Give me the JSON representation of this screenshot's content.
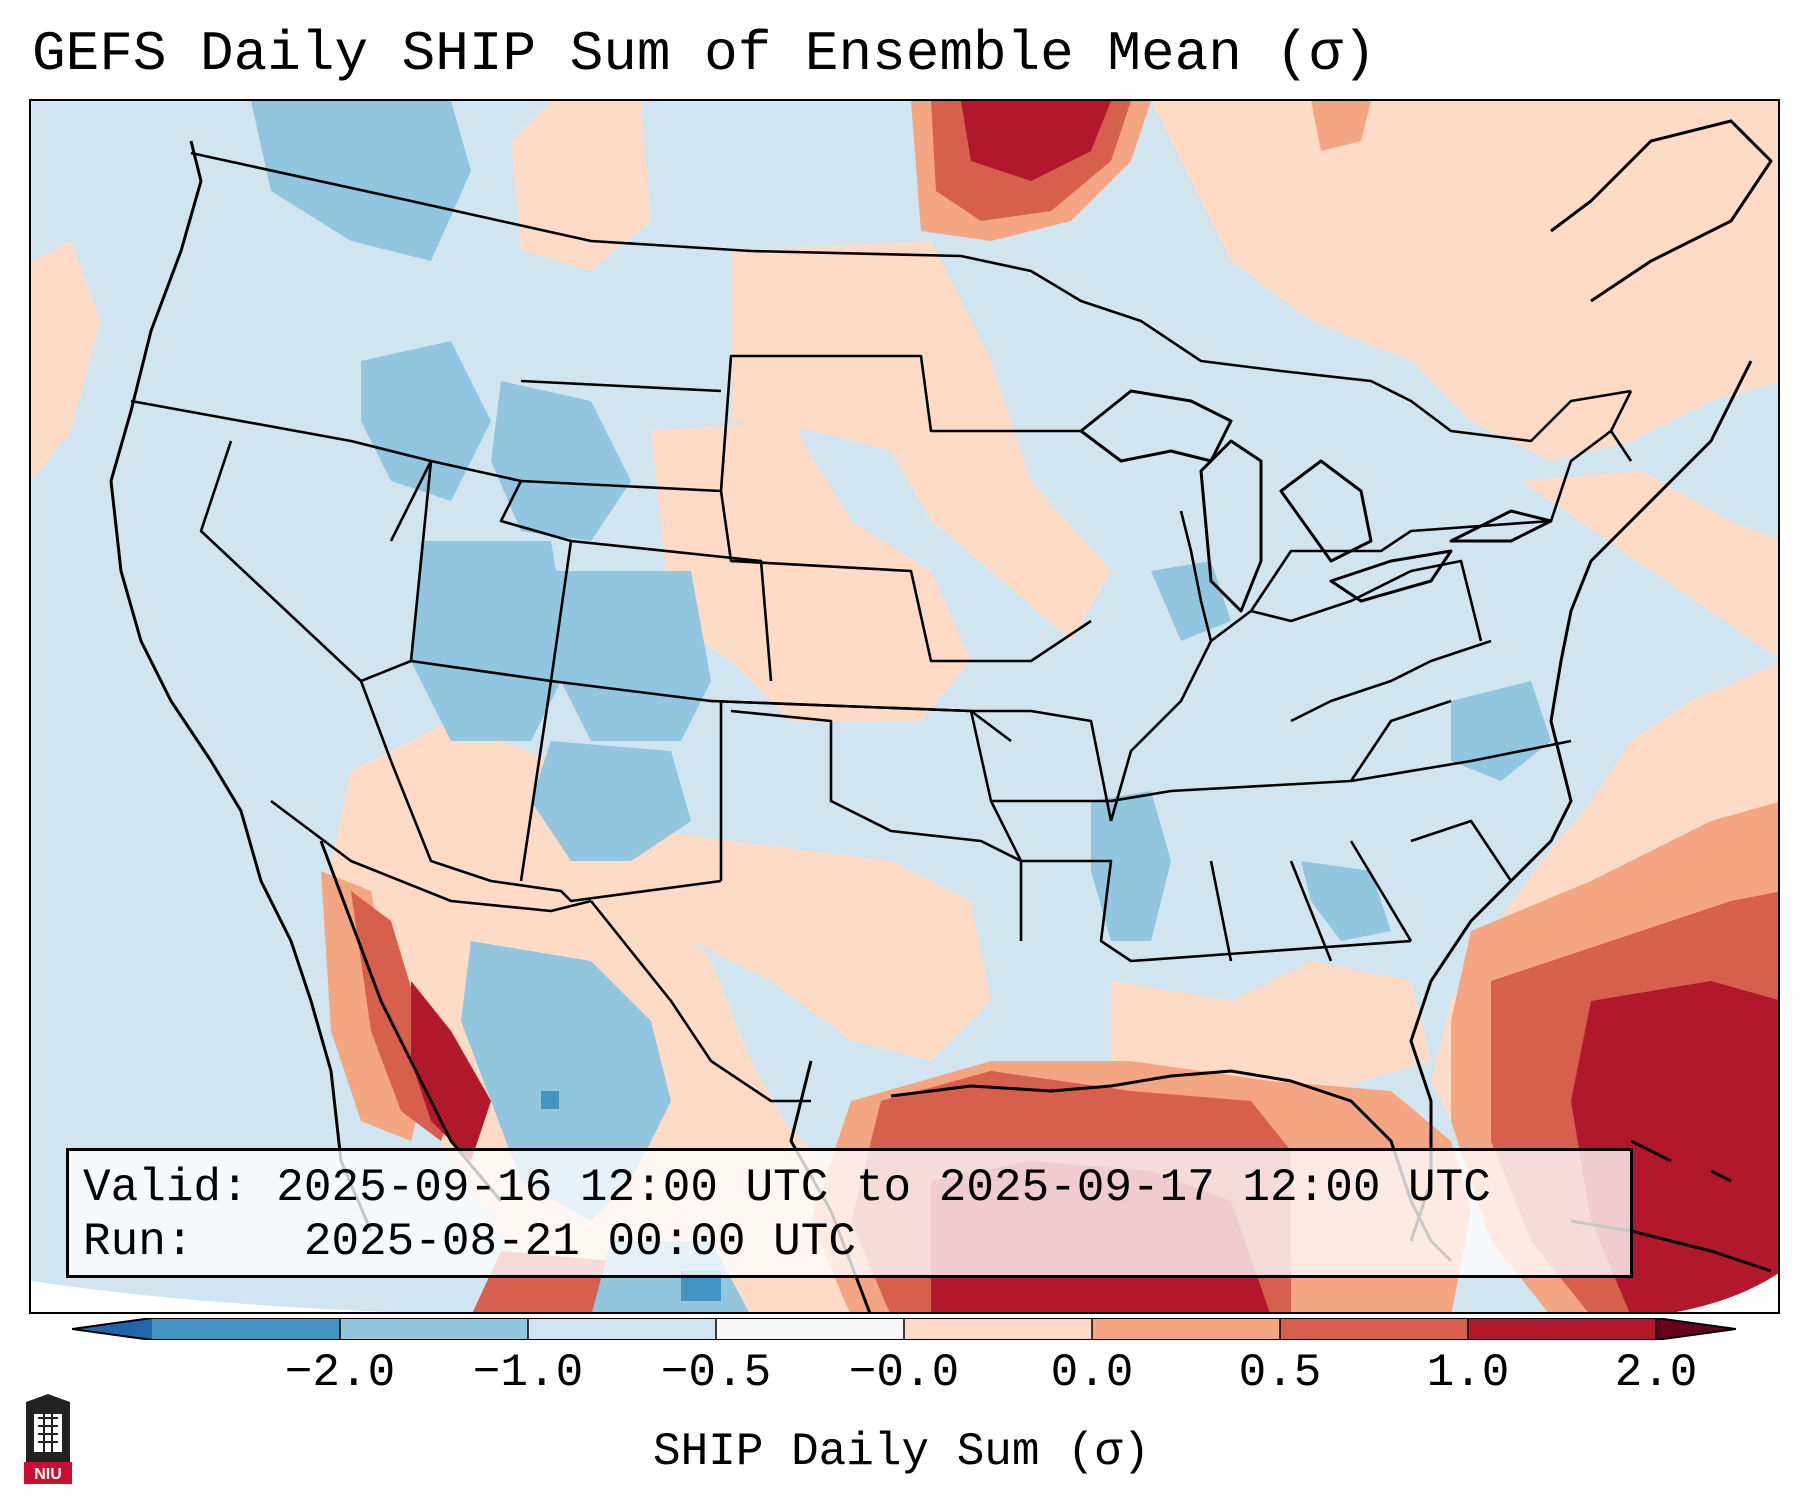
{
  "title": "GEFS Daily SHIP Sum of Ensemble Mean (σ)",
  "info": {
    "valid_label": "Valid:",
    "valid_value": "2025-09-16 12:00 UTC to 2025-09-17 12:00 UTC",
    "run_label": "Run:",
    "run_value": "2025-08-21 00:00 UTC"
  },
  "colorbar": {
    "label": "SHIP Daily Sum (σ)",
    "ticks": [
      "−2.0",
      "−1.0",
      "−0.5",
      "−0.0",
      "0.0",
      "0.5",
      "1.0",
      "2.0"
    ],
    "colors": [
      "#4393c3",
      "#92c5de",
      "#d1e5f0",
      "#f7f7f7",
      "#fddbc7",
      "#f4a582",
      "#d6604d",
      "#b2182b"
    ],
    "under_color": "#2166ac",
    "over_color": "#67001f"
  },
  "logo": {
    "text": "NIU",
    "color": "#c8102e"
  },
  "map": {
    "region": "Continental United States",
    "field_colors": {
      "neutral_neg": "#d1e5f0",
      "weak_neg": "#92c5de",
      "mod_neg": "#4393c3",
      "weak_pos": "#fddbc7",
      "mod_pos": "#f4a582",
      "strong_pos": "#d6604d",
      "extreme_pos": "#b2182b"
    }
  }
}
